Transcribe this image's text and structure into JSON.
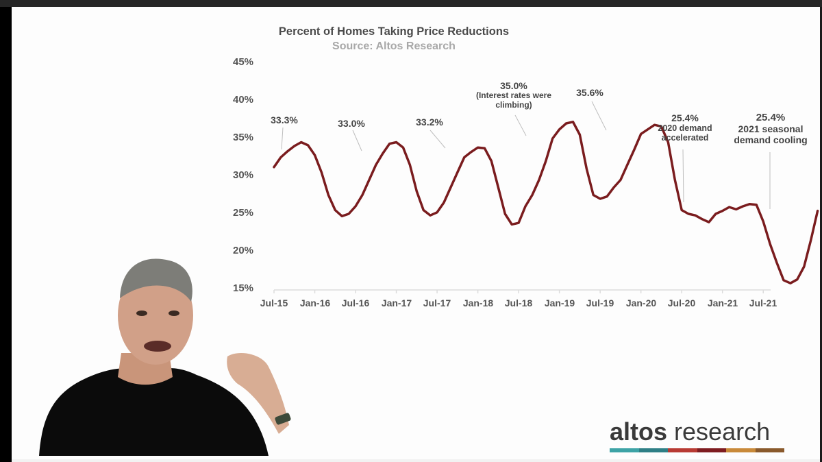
{
  "window": {
    "frame_colors": {
      "top_bar": "#262626",
      "left_bar": "#000000"
    }
  },
  "slide": {
    "title": "Percent of Homes Taking Price Reductions",
    "subtitle": "Source: Altos Research"
  },
  "logo": {
    "brand_bold": "altos",
    "brand_light": "research",
    "stripe_colors": [
      "#3ea3a6",
      "#2f7f86",
      "#b83a33",
      "#7e1c20",
      "#c98a3a",
      "#8a5a2c"
    ]
  },
  "presenter": {
    "description": "presenter video overlay, man in black t-shirt gesturing"
  },
  "chart_data": {
    "type": "line",
    "title": "Percent of Homes Taking Price Reductions",
    "subtitle": "Source: Altos Research",
    "xlabel": "",
    "ylabel": "",
    "ylim": [
      15,
      45
    ],
    "y_ticks": [
      "45%",
      "40%",
      "35%",
      "30%",
      "25%",
      "20%",
      "15%"
    ],
    "x_ticks": [
      "Jul-15",
      "Jan-16",
      "Jul-16",
      "Jan-17",
      "Jul-17",
      "Jan-18",
      "Jul-18",
      "Jan-19",
      "Jul-19",
      "Jan-20",
      "Jul-20",
      "Jan-21",
      "Jul-21"
    ],
    "grid": false,
    "legend": "none",
    "line_color": "#7a1c1e",
    "series": [
      {
        "name": "Percent of Homes Taking Price Reductions",
        "x_month_index_start": 0,
        "values": [
          31.2,
          32.5,
          33.3,
          34.0,
          34.5,
          34.1,
          32.8,
          30.5,
          27.5,
          25.5,
          24.7,
          25.0,
          26.0,
          27.5,
          29.5,
          31.5,
          33.0,
          34.3,
          34.5,
          33.8,
          31.5,
          28.0,
          25.5,
          24.8,
          25.2,
          26.5,
          28.5,
          30.5,
          32.5,
          33.2,
          33.8,
          33.7,
          32.0,
          28.5,
          25.0,
          23.6,
          23.8,
          26.0,
          27.5,
          29.5,
          32.0,
          35.0,
          36.2,
          37.0,
          37.2,
          35.5,
          31.0,
          27.5,
          27.0,
          27.3,
          28.5,
          29.5,
          31.5,
          33.5,
          35.6,
          36.2,
          36.8,
          36.6,
          34.5,
          29.5,
          25.5,
          25.0,
          24.8,
          24.3,
          23.9,
          25.0,
          25.4,
          25.9,
          25.6,
          26.0,
          26.3,
          26.2,
          24.0,
          21.0,
          18.5,
          16.2,
          15.8,
          16.3,
          18.0,
          21.5,
          25.4
        ]
      }
    ],
    "annotations": [
      {
        "label": "33.3%",
        "sub": "",
        "x_tick": "Jul-15"
      },
      {
        "label": "33.0%",
        "sub": "",
        "x_tick": "Jul-16"
      },
      {
        "label": "33.2%",
        "sub": "",
        "x_tick": "Jul-17"
      },
      {
        "label": "35.0%",
        "sub": "(Interest rates were climbing)",
        "x_tick": "Jul-18"
      },
      {
        "label": "35.6%",
        "sub": "",
        "x_tick": "Jul-19"
      },
      {
        "label": "25.4%",
        "sub": "2020 demand accelerated",
        "x_tick": "Jul-20"
      },
      {
        "label": "25.4%",
        "sub": "2021 seasonal demand cooling",
        "x_tick": "Jul-21"
      }
    ]
  },
  "annotations_text": {
    "a1": "33.3%",
    "a2": "33.0%",
    "a3": "33.2%",
    "a4_value": "35.0%",
    "a4_line1": "(Interest rates were",
    "a4_line2": "climbing)",
    "a5": "35.6%",
    "a6_value": "25.4%",
    "a6_line1": "2020 demand",
    "a6_line2": "accelerated",
    "a7_value": "25.4%",
    "a7_line1": "2021 seasonal",
    "a7_line2": "demand cooling"
  }
}
